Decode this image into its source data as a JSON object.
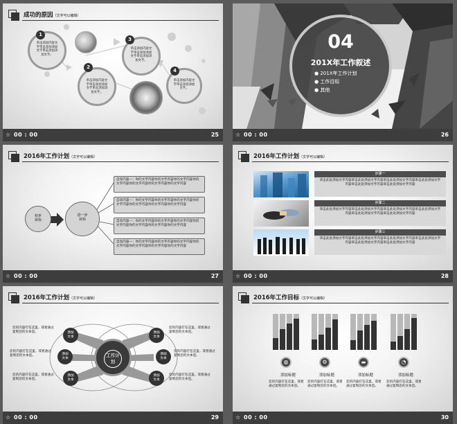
{
  "slides": [
    {
      "number": "25",
      "time": "00 : 00",
      "title": "成功的原因",
      "title_note": "（文字可以编辑）",
      "points": [
        {
          "n": "1",
          "text": "单击添加内容文字单击添加添加文字单击添加添加文字。"
        },
        {
          "n": "2",
          "text": "单击添加内容文字单击添加添加文字单击添加添加文字。"
        },
        {
          "n": "3",
          "text": "单击添加内容文字单击添加添加文字单击添加添加文字。"
        },
        {
          "n": "4",
          "text": "单击添加内容文字单击添加添加文字。"
        }
      ]
    },
    {
      "number": "26",
      "time": "00 : 00",
      "big_number": "04",
      "heading": "201X年工作叙述",
      "items": [
        "201X年工作计划",
        "工作目标",
        "其他"
      ]
    },
    {
      "number": "27",
      "time": "00 : 00",
      "title": "2016年工作计划",
      "title_note": "（文字可以编辑）",
      "start_label": "初步目标",
      "next_label": "进一步目标",
      "contents": [
        "自动内容一：你的文字内容你的文字内容你的文字内容你的文字内容你的文字内容你的文字内容你的文字内容",
        "自动内容一：你的文字内容你的文字内容你的文字内容你的文字内容你的文字内容你的文字内容你的文字内容",
        "自动内容一：你的文字内容你的文字内容你的文字内容你的文字内容你的文字内容你的文字内容你的文字内容",
        "自动内容一：你的文字内容你的文字内容你的文字内容你的文字内容你的文字内容你的文字内容你的文字内容"
      ]
    },
    {
      "number": "28",
      "time": "00 : 00",
      "title": "2016年工作计划",
      "title_note": "（文字可以编辑）",
      "steps": [
        {
          "label": "步骤一",
          "text": "单击此处添加文字内容单击此处添加文字内容单击此处添加文字内容单击此处添加文字内容单击此处添加文字内容单击此处添加文字内容"
        },
        {
          "label": "步骤二",
          "text": "单击此处添加文字内容单击此处添加文字内容单击此处添加文字内容单击此处添加文字内容单击此处添加文字内容单击此处添加文字内容"
        },
        {
          "label": "步骤三",
          "text": "单击此处添加文字内容单击此处添加文字内容单击此处添加文字内容单击此处添加文字内容单击此处添加文字内容单击此处添加文字内容"
        }
      ]
    },
    {
      "number": "29",
      "time": "00 : 00",
      "title": "2016年工作计划",
      "title_note": "（文字可以编辑）",
      "center_label": "工作计划",
      "node_label": "添加文本",
      "side_text": "您的内容打在这里，或者通过复制您的文本后。"
    },
    {
      "number": "30",
      "time": "00 : 00",
      "title": "2016年工作目标",
      "title_note": "（文字可以编辑）",
      "goal_label": "添加标题",
      "goal_text": "您的内容打在这里，或者通过复制您的文本后。",
      "icons": [
        "globe-icon",
        "gears-icon",
        "wallet-icon",
        "chart-icon"
      ]
    }
  ]
}
